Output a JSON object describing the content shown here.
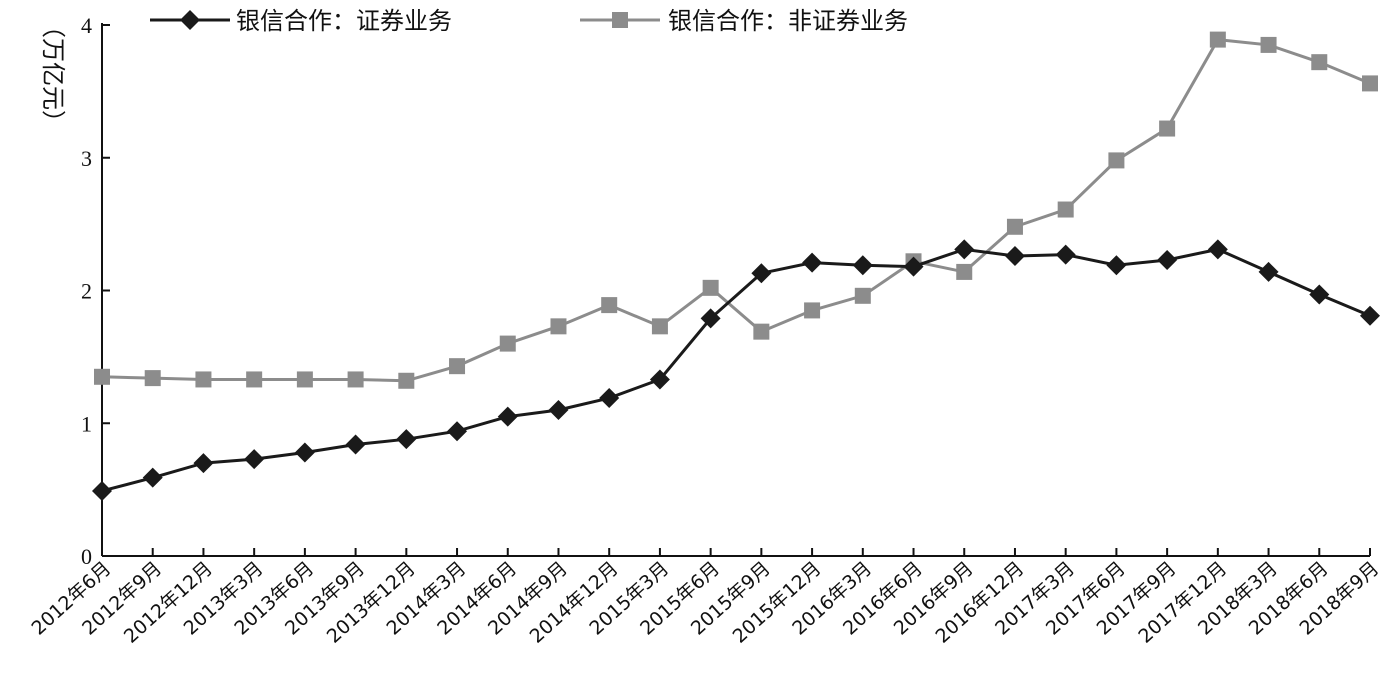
{
  "chart_data": {
    "type": "line",
    "title": "",
    "xlabel": "",
    "ylabel": "（万亿元）",
    "ylim": [
      0,
      4
    ],
    "yticks": [
      0,
      1,
      2,
      3,
      4
    ],
    "grid": false,
    "legend_position": "top",
    "categories": [
      "2012年6月",
      "2012年9月",
      "2012年12月",
      "2013年3月",
      "2013年6月",
      "2013年9月",
      "2013年12月",
      "2014年3月",
      "2014年6月",
      "2014年9月",
      "2014年12月",
      "2015年3月",
      "2015年6月",
      "2015年9月",
      "2015年12月",
      "2016年3月",
      "2016年6月",
      "2016年9月",
      "2016年12月",
      "2017年3月",
      "2017年6月",
      "2017年9月",
      "2017年12月",
      "2018年3月",
      "2018年6月",
      "2018年9月"
    ],
    "series": [
      {
        "name": "银信合作：证券业务",
        "color": "#1a1a1a",
        "marker": "diamond",
        "values": [
          0.49,
          0.59,
          0.7,
          0.73,
          0.78,
          0.84,
          0.88,
          0.94,
          1.05,
          1.1,
          1.19,
          1.33,
          1.79,
          2.13,
          2.21,
          2.19,
          2.18,
          2.31,
          2.26,
          2.27,
          2.19,
          2.23,
          2.31,
          2.14,
          1.97,
          1.81
        ]
      },
      {
        "name": "银信合作：非证券业务",
        "color": "#8c8c8c",
        "marker": "square",
        "values": [
          1.35,
          1.34,
          1.33,
          1.33,
          1.33,
          1.33,
          1.32,
          1.43,
          1.6,
          1.73,
          1.89,
          1.73,
          2.02,
          1.69,
          1.85,
          1.96,
          2.22,
          2.14,
          2.48,
          2.61,
          2.98,
          3.22,
          3.89,
          3.85,
          3.72,
          3.56
        ]
      }
    ]
  }
}
